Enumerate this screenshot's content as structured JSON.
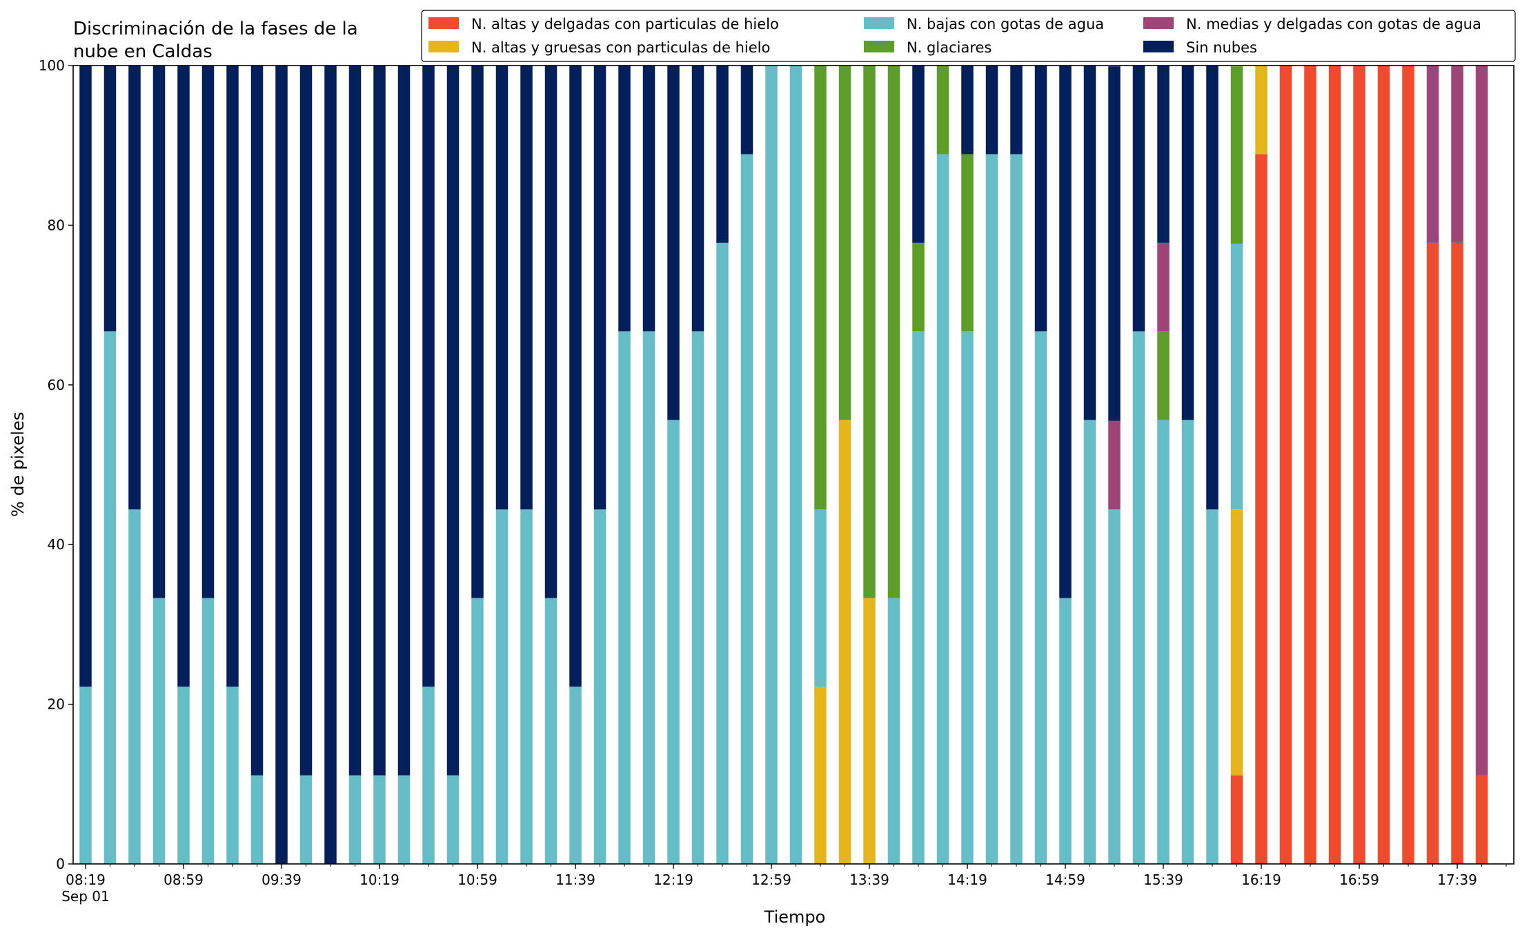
{
  "chart_data": {
    "type": "bar",
    "stacked": true,
    "title_lines": [
      "Discriminación de la fases de la",
      "nube en Caldas"
    ],
    "xlabel": "Tiempo",
    "ylabel": "% de pixeles",
    "ylim": [
      0,
      100
    ],
    "yticks": [
      0,
      20,
      40,
      60,
      80,
      100
    ],
    "grid": false,
    "legend_position": "top-right",
    "x_tick_labels": [
      "08:19",
      "08:59",
      "09:39",
      "10:19",
      "10:59",
      "11:39",
      "12:19",
      "12:59",
      "13:39",
      "14:19",
      "14:59",
      "15:39",
      "16:19",
      "16:59",
      "17:39"
    ],
    "x_date_label": "Sep 01",
    "x": [
      "08:19",
      "08:29",
      "08:39",
      "08:49",
      "08:59",
      "09:09",
      "09:19",
      "09:29",
      "09:39",
      "09:49",
      "09:59",
      "10:09",
      "10:19",
      "10:29",
      "10:39",
      "10:49",
      "10:59",
      "11:09",
      "11:19",
      "11:29",
      "11:39",
      "11:49",
      "11:59",
      "12:09",
      "12:19",
      "12:29",
      "12:39",
      "12:49",
      "12:59",
      "13:09",
      "13:19",
      "13:29",
      "13:39",
      "13:49",
      "13:59",
      "14:09",
      "14:19",
      "14:29",
      "14:39",
      "14:49",
      "14:59",
      "15:09",
      "15:19",
      "15:29",
      "15:39",
      "15:49",
      "15:59",
      "16:09",
      "16:19",
      "16:29",
      "16:39",
      "16:49",
      "16:59",
      "17:09",
      "17:19",
      "17:29",
      "17:39",
      "17:49"
    ],
    "series": [
      {
        "name": "N. altas y delgadas con particulas de hielo",
        "color": "#ef4b2d",
        "values": [
          0,
          0,
          0,
          0,
          0,
          0,
          0,
          0,
          0,
          0,
          0,
          0,
          0,
          0,
          0,
          0,
          0,
          0,
          0,
          0,
          0,
          0,
          0,
          0,
          0,
          0,
          0,
          0,
          0,
          0,
          0,
          0,
          0,
          0,
          0,
          0,
          0,
          0,
          0,
          0,
          0,
          0,
          0,
          0,
          0,
          0,
          0,
          11.1,
          88.9,
          100,
          100,
          100,
          100,
          100,
          100,
          77.8,
          77.8,
          11.1
        ]
      },
      {
        "name": "N. altas y gruesas con particulas de hielo",
        "color": "#e5b61b",
        "values": [
          0,
          0,
          0,
          0,
          0,
          0,
          0,
          0,
          0,
          0,
          0,
          0,
          0,
          0,
          0,
          0,
          0,
          0,
          0,
          0,
          0,
          0,
          0,
          0,
          0,
          0,
          0,
          0,
          0,
          0,
          22.2,
          55.6,
          33.3,
          0,
          0,
          0,
          0,
          0,
          0,
          0,
          0,
          0,
          0,
          0,
          0,
          0,
          0,
          33.3,
          11.1,
          0,
          0,
          0,
          0,
          0,
          0,
          0,
          0,
          0
        ]
      },
      {
        "name": "N. bajas con gotas de agua",
        "color": "#65bdc8",
        "values": [
          22.2,
          66.7,
          44.4,
          33.3,
          22.2,
          33.3,
          22.2,
          11.1,
          0,
          11.1,
          0,
          11.1,
          11.1,
          11.1,
          22.2,
          11.1,
          33.3,
          44.4,
          44.4,
          33.3,
          22.2,
          44.4,
          66.7,
          66.7,
          55.6,
          66.7,
          77.8,
          88.9,
          100,
          100,
          22.2,
          0,
          0,
          33.3,
          66.7,
          88.9,
          66.7,
          88.9,
          88.9,
          66.7,
          33.3,
          55.6,
          44.4,
          66.7,
          55.6,
          55.6,
          44.4,
          33.3,
          0,
          0,
          0,
          0,
          0,
          0,
          0,
          0,
          0,
          0
        ]
      },
      {
        "name": "N. glaciares",
        "color": "#5d9e2b",
        "values": [
          0,
          0,
          0,
          0,
          0,
          0,
          0,
          0,
          0,
          0,
          0,
          0,
          0,
          0,
          0,
          0,
          0,
          0,
          0,
          0,
          0,
          0,
          0,
          0,
          0,
          0,
          0,
          0,
          0,
          0,
          55.6,
          44.4,
          66.7,
          66.7,
          11.1,
          11.1,
          22.2,
          0,
          0,
          0,
          0,
          0,
          0,
          0,
          11.1,
          0,
          0,
          22.2,
          0,
          0,
          0,
          0,
          0,
          0,
          0,
          0,
          0,
          0
        ]
      },
      {
        "name": "N. medias y delgadas con gotas de agua",
        "color": "#9e4478",
        "values": [
          0,
          0,
          0,
          0,
          0,
          0,
          0,
          0,
          0,
          0,
          0,
          0,
          0,
          0,
          0,
          0,
          0,
          0,
          0,
          0,
          0,
          0,
          0,
          0,
          0,
          0,
          0,
          0,
          0,
          0,
          0,
          0,
          0,
          0,
          0,
          0,
          0,
          0,
          0,
          0,
          0,
          0,
          11.1,
          0,
          11.1,
          0,
          0,
          0,
          0,
          0,
          0,
          0,
          0,
          0,
          0,
          22.2,
          22.2,
          88.9
        ]
      },
      {
        "name": "Sin nubes",
        "color": "#031f5c",
        "values": [
          77.8,
          33.3,
          55.6,
          66.7,
          77.8,
          66.7,
          77.8,
          88.9,
          100,
          88.9,
          100,
          88.9,
          88.9,
          88.9,
          77.8,
          88.9,
          66.7,
          55.6,
          55.6,
          66.7,
          77.8,
          55.6,
          33.3,
          33.3,
          44.4,
          33.3,
          22.2,
          11.1,
          0,
          0,
          0,
          0,
          0,
          0,
          22.2,
          0,
          11.1,
          11.1,
          11.1,
          33.3,
          66.7,
          44.4,
          44.4,
          33.3,
          22.2,
          44.4,
          55.6,
          0,
          0,
          0,
          0,
          0,
          0,
          0,
          0,
          0,
          0,
          0
        ]
      }
    ]
  }
}
